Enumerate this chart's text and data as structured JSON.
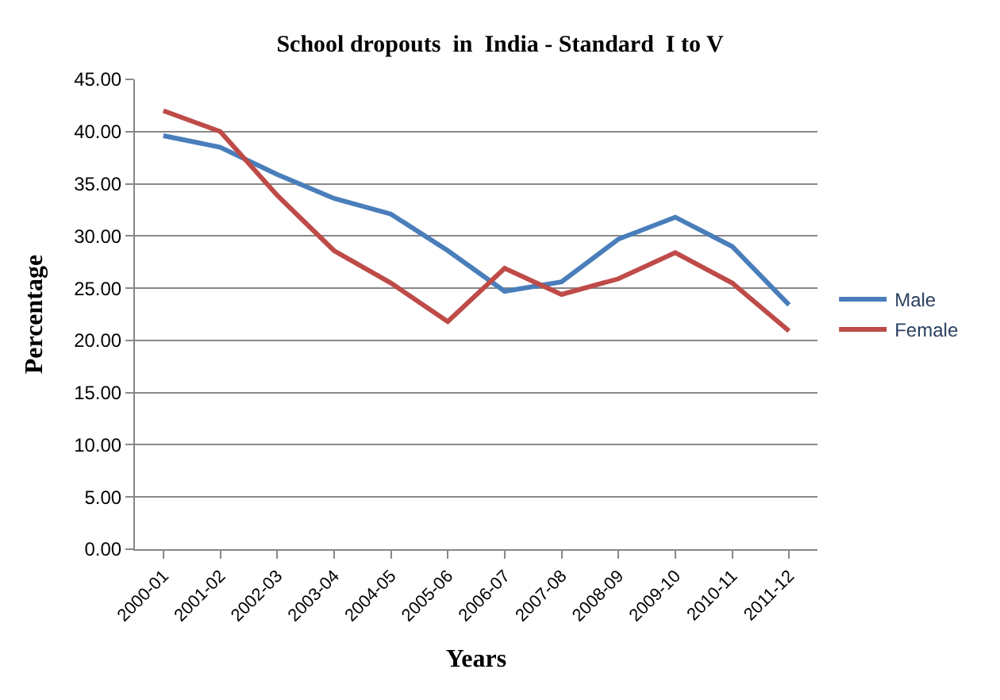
{
  "chart_data": {
    "type": "line",
    "title": "School dropouts  in  India - Standard  I to V",
    "xlabel": "Years",
    "ylabel": "Percentage",
    "categories": [
      "2000-01",
      "2001-02",
      "2002-03",
      "2003-04",
      "2004-05",
      "2005-06",
      "2006-07",
      "2007-08",
      "2008-09",
      "2009-10",
      "2010-11",
      "2011-12"
    ],
    "series": [
      {
        "name": "Male",
        "color": "#4a7ebb",
        "values": [
          39.6,
          38.5,
          35.9,
          33.6,
          32.1,
          28.6,
          24.7,
          25.6,
          29.7,
          31.8,
          29.0,
          23.4
        ]
      },
      {
        "name": "Female",
        "color": "#be4b48",
        "values": [
          42.0,
          40.0,
          33.9,
          28.6,
          25.5,
          21.8,
          26.9,
          24.4,
          25.9,
          28.4,
          25.5,
          20.9
        ]
      }
    ],
    "ylim": [
      0,
      45
    ],
    "yticks": [
      {
        "value": 0,
        "label": "0.00"
      },
      {
        "value": 5,
        "label": "5.00"
      },
      {
        "value": 10,
        "label": "10.00"
      },
      {
        "value": 15,
        "label": "15.00"
      },
      {
        "value": 20,
        "label": "20.00"
      },
      {
        "value": 25,
        "label": "25.00"
      },
      {
        "value": 30,
        "label": "30.00"
      },
      {
        "value": 35,
        "label": "35.00"
      },
      {
        "value": 40,
        "label": "40.00"
      },
      {
        "value": 45,
        "label": "45.00"
      }
    ],
    "grid": "y",
    "legend": "right",
    "marker": "none",
    "line_style": "solid"
  }
}
